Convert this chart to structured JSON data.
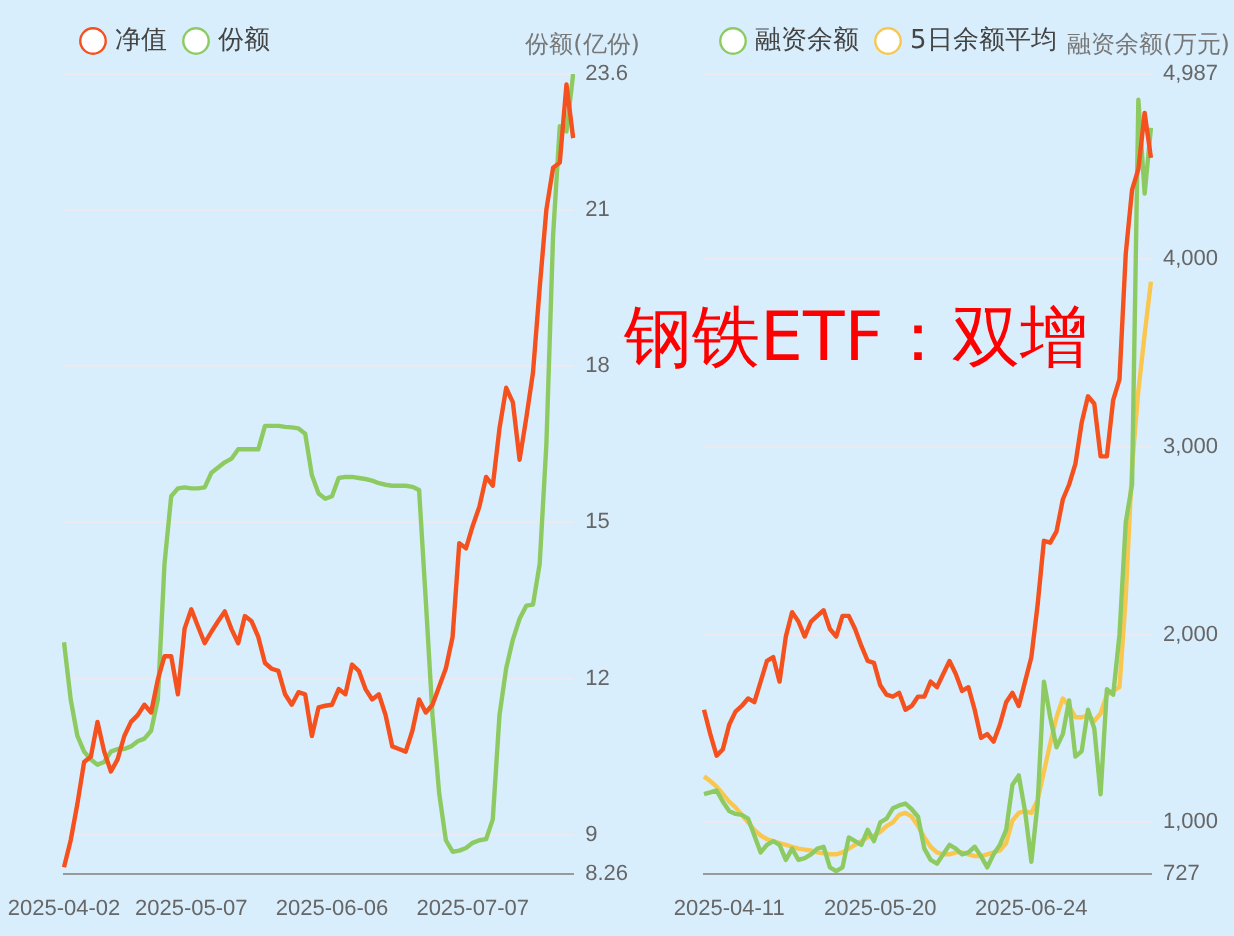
{
  "chart_data": [
    {
      "type": "line",
      "ylabel": "份额(亿份)",
      "legend": "top left",
      "grid": "y",
      "categories": [
        "2025-04-02",
        null,
        null,
        null,
        null,
        null,
        null,
        null,
        null,
        null,
        null,
        null,
        null,
        null,
        null,
        null,
        null,
        null,
        null,
        "2025-05-07",
        null,
        null,
        null,
        null,
        null,
        null,
        null,
        null,
        null,
        null,
        null,
        null,
        null,
        null,
        null,
        null,
        null,
        null,
        null,
        null,
        "2025-06-06",
        null,
        null,
        null,
        null,
        null,
        null,
        null,
        null,
        null,
        null,
        null,
        null,
        null,
        null,
        null,
        null,
        null,
        null,
        null,
        null,
        "2025-07-07",
        null,
        null,
        null,
        null,
        null,
        null,
        null,
        null,
        null,
        null,
        null,
        null,
        null,
        null,
        null
      ],
      "ylim": [
        8.26,
        23.6
      ],
      "yticks": [
        8.26,
        9,
        12,
        15,
        18,
        21,
        23.6
      ],
      "series": [
        {
          "name": "净值",
          "color": "#f4511e",
          "values": [
            8.38,
            8.9,
            9.6,
            10.4,
            10.5,
            11.17,
            10.6,
            10.22,
            10.45,
            10.9,
            11.17,
            11.3,
            11.5,
            11.35,
            11.98,
            12.43,
            12.43,
            11.7,
            12.96,
            13.33,
            13.0,
            12.68,
            12.9,
            13.1,
            13.29,
            12.95,
            12.68,
            13.2,
            13.1,
            12.8,
            12.3,
            12.19,
            12.15,
            11.7,
            11.5,
            11.74,
            11.7,
            10.9,
            11.45,
            11.48,
            11.5,
            11.8,
            11.7,
            12.27,
            12.15,
            11.8,
            11.6,
            11.7,
            11.3,
            10.7,
            10.65,
            10.6,
            11.0,
            11.6,
            11.35,
            11.5,
            11.85,
            12.2,
            12.8,
            14.6,
            14.5,
            14.93,
            15.3,
            15.87,
            15.7,
            16.8,
            17.58,
            17.3,
            16.2,
            17.0,
            17.87,
            19.5,
            21.0,
            21.8,
            21.9,
            23.4,
            22.37
          ]
        },
        {
          "name": "份额",
          "color": "#8dcb62",
          "values": [
            12.7,
            11.6,
            10.9,
            10.6,
            10.45,
            10.35,
            10.4,
            10.6,
            10.65,
            10.65,
            10.7,
            10.8,
            10.85,
            11.0,
            11.6,
            14.2,
            15.5,
            15.65,
            15.67,
            15.65,
            15.65,
            15.67,
            15.95,
            16.05,
            16.15,
            16.22,
            16.4,
            16.4,
            16.4,
            16.4,
            16.85,
            16.85,
            16.85,
            16.83,
            16.82,
            16.8,
            16.7,
            15.9,
            15.55,
            15.45,
            15.5,
            15.85,
            15.87,
            15.87,
            15.85,
            15.83,
            15.8,
            15.75,
            15.72,
            15.7,
            15.7,
            15.7,
            15.68,
            15.62,
            13.5,
            11.3,
            9.8,
            8.9,
            8.68,
            8.7,
            8.75,
            8.85,
            8.9,
            8.92,
            9.3,
            11.3,
            12.2,
            12.75,
            13.15,
            13.4,
            13.42,
            14.2,
            16.5,
            20.5,
            22.6,
            22.5,
            23.6
          ]
        }
      ]
    },
    {
      "type": "line",
      "title": "钢铁ETF：双增",
      "ylabel": "融资余额(万元)",
      "legend": "top left",
      "grid": "y",
      "categories": [
        null,
        null,
        null,
        null,
        "2025-04-11",
        null,
        null,
        null,
        null,
        null,
        null,
        null,
        null,
        null,
        null,
        null,
        null,
        null,
        null,
        null,
        null,
        null,
        null,
        null,
        null,
        null,
        null,
        null,
        "2025-05-20",
        null,
        null,
        null,
        null,
        null,
        null,
        null,
        null,
        null,
        null,
        null,
        null,
        null,
        null,
        null,
        null,
        null,
        null,
        null,
        null,
        null,
        null,
        null,
        "2025-06-24",
        null,
        null,
        null,
        null,
        null,
        null,
        null,
        null,
        null,
        null,
        null,
        null,
        null,
        null,
        null,
        null,
        null,
        null,
        null
      ],
      "ylim": [
        727,
        4987
      ],
      "yticks": [
        727,
        {
          "value": 1000,
          "label": "1,000"
        },
        {
          "value": 2000,
          "label": "2,000"
        },
        {
          "value": 3000,
          "label": "3,000"
        },
        {
          "value": 4000,
          "label": "4,000"
        },
        {
          "value": 4987,
          "label": "4,987"
        }
      ],
      "series": [
        {
          "color": "#f4511e",
          "values": [
            1600,
            1470,
            1355,
            1390,
            1520,
            1590,
            1620,
            1660,
            1640,
            1750,
            1860,
            1880,
            1750,
            1990,
            2120,
            2070,
            1990,
            2070,
            2100,
            2130,
            2030,
            1990,
            2100,
            2100,
            2030,
            1940,
            1860,
            1850,
            1730,
            1680,
            1670,
            1690,
            1600,
            1620,
            1670,
            1670,
            1750,
            1720,
            1790,
            1860,
            1790,
            1700,
            1720,
            1600,
            1450,
            1470,
            1430,
            1520,
            1640,
            1690,
            1620,
            1750,
            1880,
            2160,
            2500,
            2490,
            2550,
            2720,
            2800,
            2910,
            3130,
            3270,
            3230,
            2950,
            2950,
            3250,
            3360,
            4030,
            4370,
            4480,
            4780,
            4540
          ]
        },
        {
          "name": "融资余额",
          "color": "#8dcb62",
          "values": [
            1150,
            1160,
            1170,
            1110,
            1060,
            1045,
            1040,
            1020,
            930,
            840,
            880,
            900,
            880,
            800,
            860,
            800,
            810,
            830,
            860,
            870,
            760,
            740,
            760,
            920,
            900,
            880,
            960,
            900,
            1000,
            1020,
            1075,
            1090,
            1100,
            1070,
            1030,
            860,
            800,
            780,
            830,
            880,
            860,
            830,
            840,
            870,
            820,
            760,
            830,
            880,
            960,
            1200,
            1250,
            1060,
            790,
            1100,
            1750,
            1560,
            1400,
            1470,
            1650,
            1350,
            1380,
            1600,
            1500,
            1150,
            1710,
            1680,
            2000,
            2600,
            2800,
            4850,
            4350,
            4700
          ]
        },
        {
          "name": "5日余额平均",
          "color": "#f9c74f",
          "values": [
            1245,
            1220,
            1190,
            1150,
            1110,
            1080,
            1040,
            1000,
            960,
            930,
            910,
            900,
            890,
            880,
            870,
            860,
            855,
            850,
            840,
            835,
            830,
            830,
            840,
            860,
            880,
            900,
            920,
            930,
            950,
            980,
            1000,
            1040,
            1050,
            1030,
            980,
            920,
            870,
            840,
            830,
            830,
            840,
            840,
            830,
            820,
            820,
            830,
            840,
            850,
            890,
            1010,
            1050,
            1060,
            1050,
            1120,
            1270,
            1420,
            1560,
            1660,
            1620,
            1560,
            1560,
            1570,
            1540,
            1580,
            1680,
            1700,
            1720,
            2200,
            2900,
            3300,
            3600,
            3880
          ]
        }
      ]
    }
  ]
}
